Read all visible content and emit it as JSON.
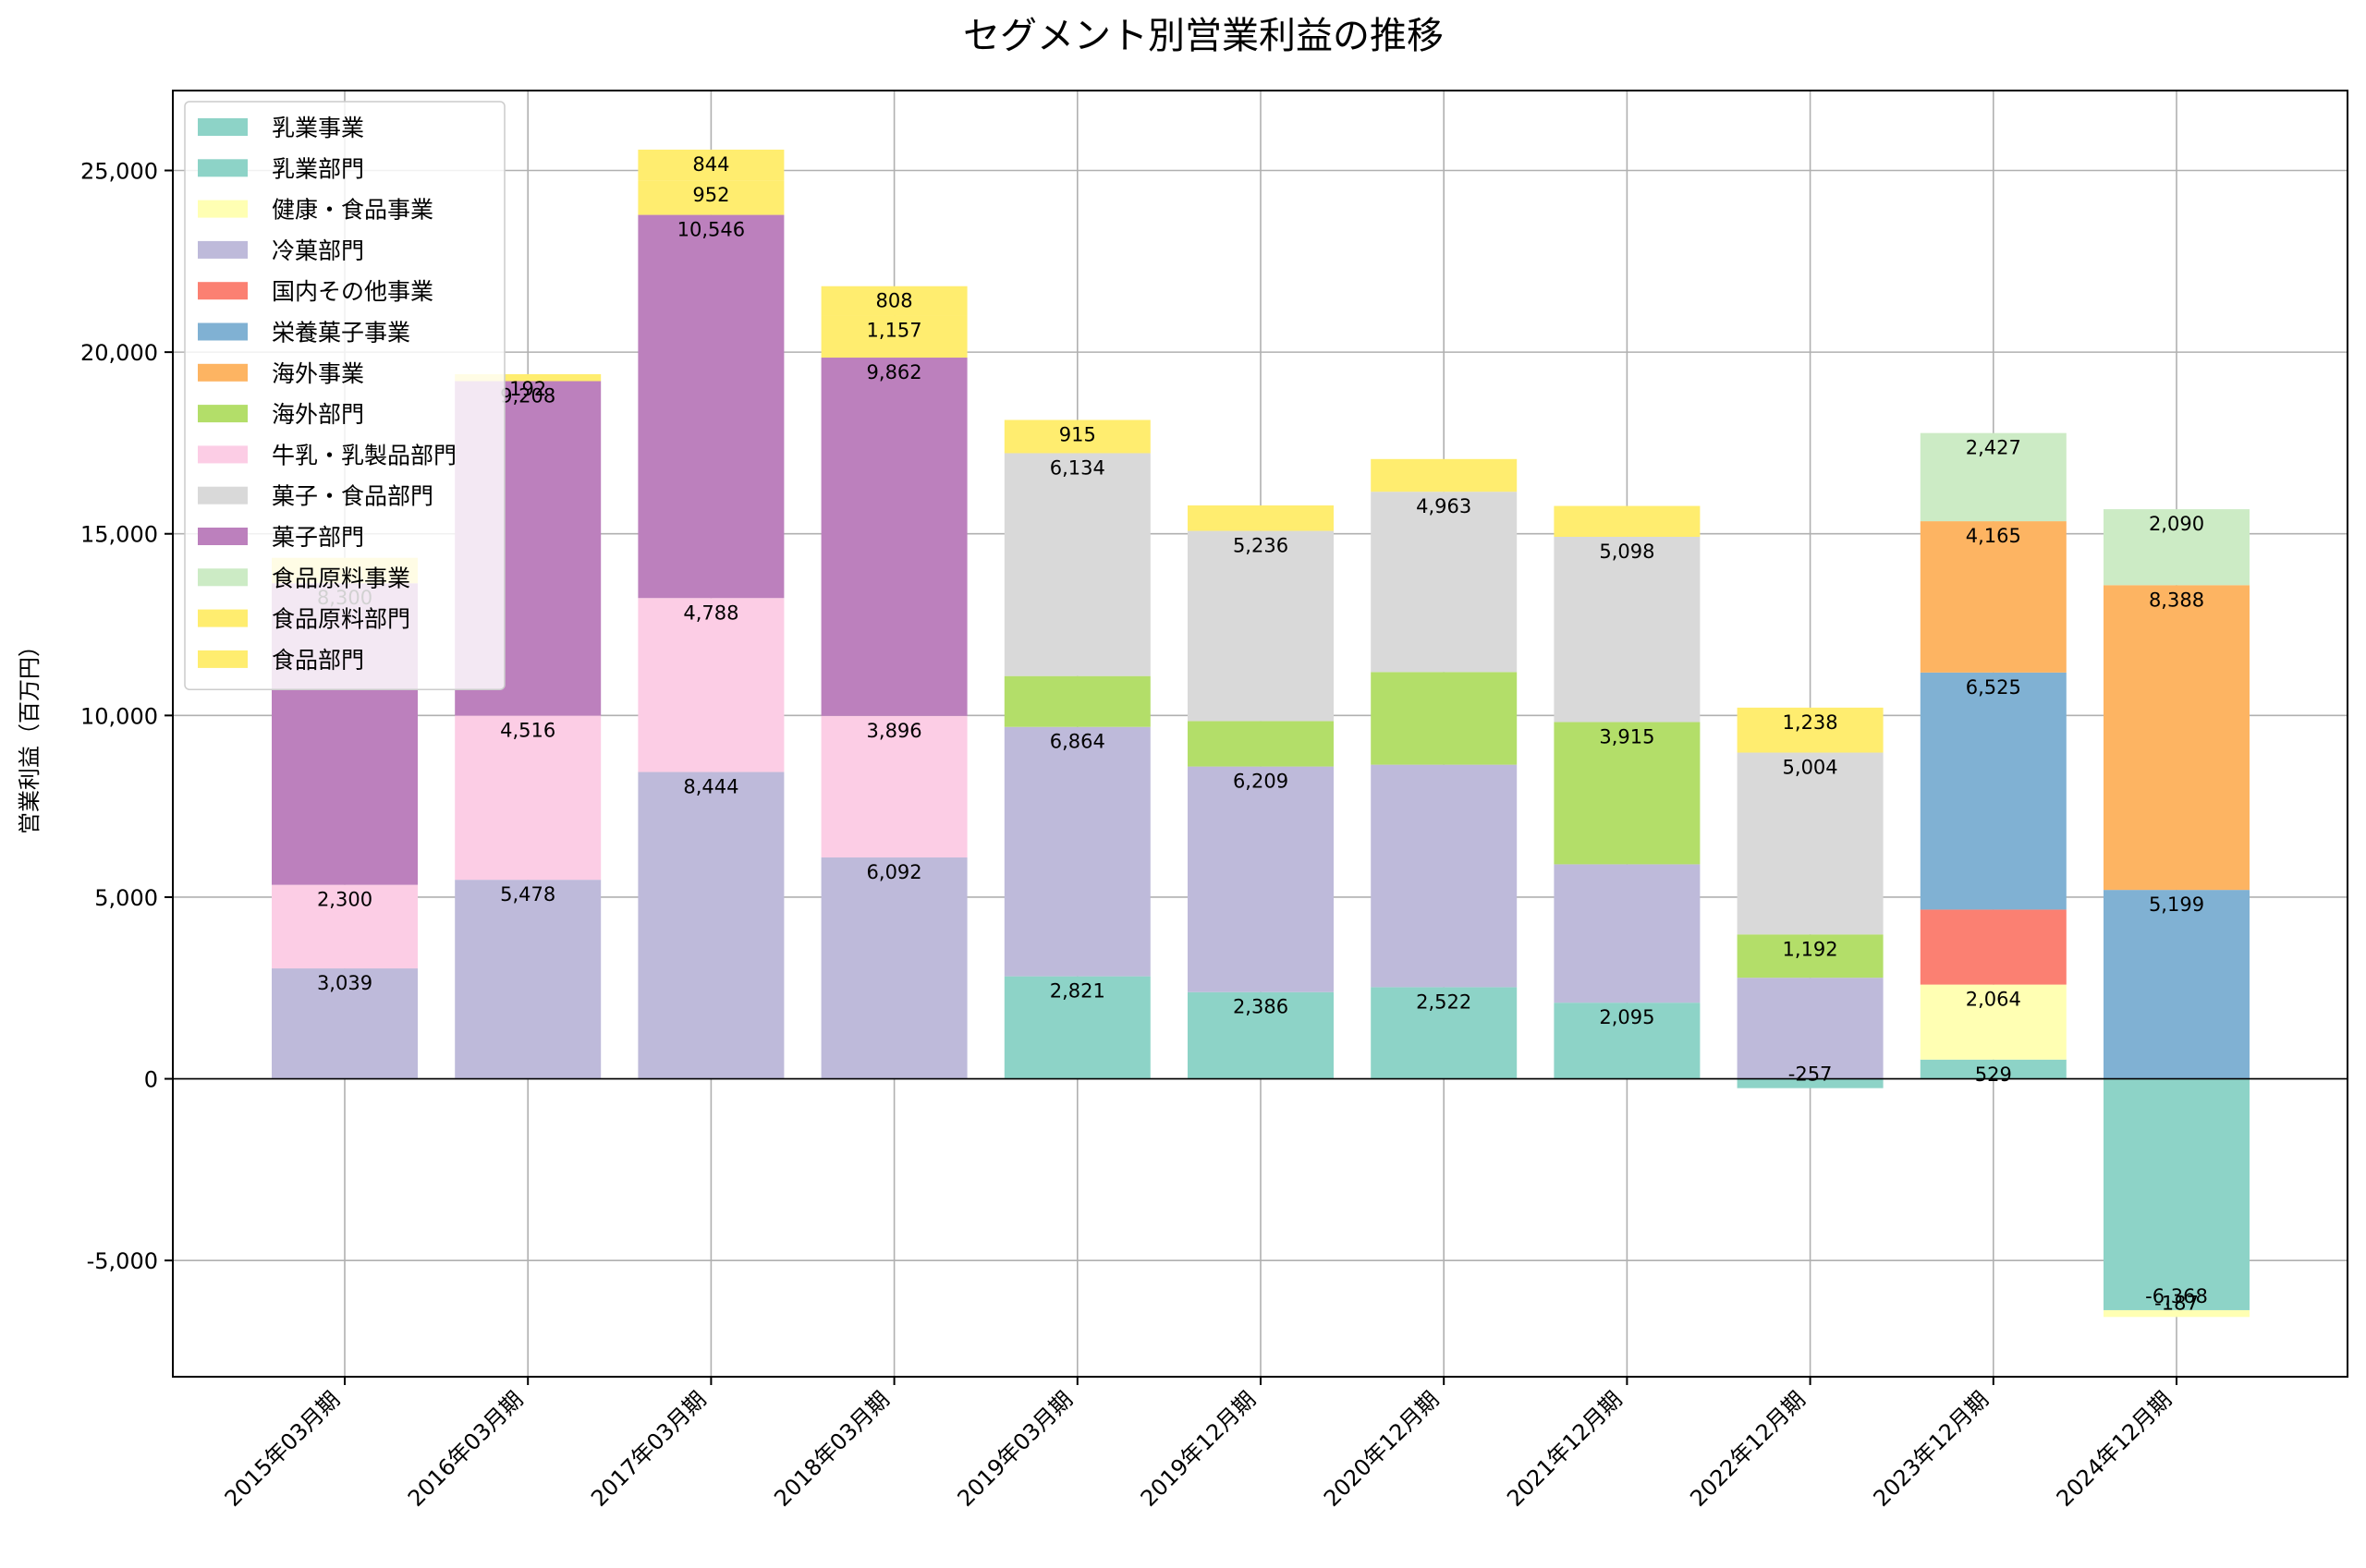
{
  "chart_data": {
    "type": "bar",
    "stacked": true,
    "title": "セグメント別営業利益の推移",
    "xlabel": "",
    "ylabel": "営業利益（百万円）",
    "ylim": [
      -8200,
      27200
    ],
    "yticks": [
      -5000,
      0,
      5000,
      10000,
      15000,
      20000,
      25000
    ],
    "ytick_labels": [
      "-5,000",
      "0",
      "5,000",
      "10,000",
      "15,000",
      "20,000",
      "25,000"
    ],
    "grid": true,
    "legend_position": "top-left",
    "categories": [
      "2015年03月期",
      "2016年03月期",
      "2017年03月期",
      "2018年03月期",
      "2019年03月期",
      "2019年12月期",
      "2020年12月期",
      "2021年12月期",
      "2022年12月期",
      "2023年12月期",
      "2024年12月期"
    ],
    "series": [
      {
        "name": "乳業事業",
        "color": "#8dd3c7",
        "values": [
          0,
          0,
          0,
          0,
          0,
          0,
          0,
          0,
          -257,
          529,
          -6368
        ]
      },
      {
        "name": "乳業部門",
        "color": "#8dd3c7",
        "values": [
          0,
          0,
          0,
          0,
          2821,
          2386,
          2522,
          2095,
          0,
          0,
          0
        ]
      },
      {
        "name": "健康・食品事業",
        "color": "#ffffb3",
        "values": [
          0,
          0,
          0,
          0,
          0,
          0,
          0,
          0,
          0,
          2064,
          -187
        ]
      },
      {
        "name": "冷菓部門",
        "color": "#bebada",
        "values": [
          3039,
          5478,
          8444,
          6092,
          6864,
          6209,
          6123,
          3809,
          2782,
          0,
          0
        ]
      },
      {
        "name": "国内その他事業",
        "color": "#fb8072",
        "values": [
          0,
          0,
          0,
          0,
          0,
          0,
          0,
          0,
          0,
          2064,
          0
        ]
      },
      {
        "name": "栄養菓子事業",
        "color": "#80b1d3",
        "values": [
          0,
          0,
          0,
          0,
          0,
          0,
          0,
          0,
          0,
          6525,
          5199
        ]
      },
      {
        "name": "海外事業",
        "color": "#fdb462",
        "values": [
          0,
          0,
          0,
          0,
          0,
          0,
          0,
          0,
          0,
          4165,
          8388
        ]
      },
      {
        "name": "海外部門",
        "color": "#b3de69",
        "values": [
          0,
          0,
          0,
          0,
          1400,
          1250,
          2550,
          3915,
          1192,
          0,
          0
        ]
      },
      {
        "name": "牛乳・乳製品部門",
        "color": "#fccde5",
        "values": [
          2300,
          4516,
          4788,
          3896,
          0,
          0,
          0,
          0,
          0,
          0,
          0
        ]
      },
      {
        "name": "菓子・食品部門",
        "color": "#d9d9d9",
        "values": [
          0,
          0,
          0,
          0,
          6134,
          5236,
          4963,
          5098,
          5004,
          0,
          0
        ]
      },
      {
        "name": "菓子部門",
        "color": "#bc80bd",
        "values": [
          8300,
          9208,
          10546,
          9862,
          0,
          0,
          0,
          0,
          0,
          0,
          0
        ]
      },
      {
        "name": "食品原料事業",
        "color": "#ccebc5",
        "values": [
          0,
          0,
          0,
          0,
          0,
          0,
          0,
          0,
          0,
          2427,
          2090
        ]
      },
      {
        "name": "食品原料部門",
        "color": "#ffed6f",
        "values": [
          0,
          0,
          952,
          1157,
          0,
          0,
          0,
          0,
          0,
          0,
          0
        ]
      },
      {
        "name": "食品部門",
        "color": "#ffed6f",
        "values": [
          700,
          192,
          844,
          808,
          915,
          700,
          900,
          850,
          1238,
          0,
          0
        ]
      }
    ],
    "data_labels": [
      {
        "category": 0,
        "series": "冷菓部門",
        "text": "3,039"
      },
      {
        "category": 0,
        "series": "牛乳・乳製品部門",
        "text": "2,300"
      },
      {
        "category": 0,
        "series": "菓子部門",
        "text": "8,300"
      },
      {
        "category": 1,
        "series": "冷菓部門",
        "text": "5,478"
      },
      {
        "category": 1,
        "series": "牛乳・乳製品部門",
        "text": "4,516"
      },
      {
        "category": 1,
        "series": "菓子部門",
        "text": "9,208"
      },
      {
        "category": 1,
        "series": "食品部門",
        "text": "192"
      },
      {
        "category": 2,
        "series": "冷菓部門",
        "text": "8,444"
      },
      {
        "category": 2,
        "series": "牛乳・乳製品部門",
        "text": "4,788"
      },
      {
        "category": 2,
        "series": "菓子部門",
        "text": "10,546"
      },
      {
        "category": 2,
        "series": "食品原料部門",
        "text": "952"
      },
      {
        "category": 2,
        "series": "食品部門",
        "text": "844"
      },
      {
        "category": 3,
        "series": "冷菓部門",
        "text": "6,092"
      },
      {
        "category": 3,
        "series": "牛乳・乳製品部門",
        "text": "3,896"
      },
      {
        "category": 3,
        "series": "菓子部門",
        "text": "9,862"
      },
      {
        "category": 3,
        "series": "食品原料部門",
        "text": "1,157"
      },
      {
        "category": 3,
        "series": "食品部門",
        "text": "808"
      },
      {
        "category": 4,
        "series": "乳業部門",
        "text": "2,821"
      },
      {
        "category": 4,
        "series": "冷菓部門",
        "text": "6,864"
      },
      {
        "category": 4,
        "series": "菓子・食品部門",
        "text": "6,134"
      },
      {
        "category": 4,
        "series": "食品部門",
        "text": "915"
      },
      {
        "category": 5,
        "series": "乳業部門",
        "text": "2,386"
      },
      {
        "category": 5,
        "series": "冷菓部門",
        "text": "6,209"
      },
      {
        "category": 5,
        "series": "菓子・食品部門",
        "text": "5,236"
      },
      {
        "category": 6,
        "series": "乳業部門",
        "text": "2,522"
      },
      {
        "category": 6,
        "series": "菓子・食品部門",
        "text": "4,963"
      },
      {
        "category": 7,
        "series": "乳業部門",
        "text": "2,095"
      },
      {
        "category": 7,
        "series": "海外部門",
        "text": "3,915"
      },
      {
        "category": 7,
        "series": "菓子・食品部門",
        "text": "5,098"
      },
      {
        "category": 8,
        "series": "乳業事業",
        "text": "-257"
      },
      {
        "category": 8,
        "series": "海外部門",
        "text": "1,192"
      },
      {
        "category": 8,
        "series": "菓子・食品部門",
        "text": "5,004"
      },
      {
        "category": 8,
        "series": "食品部門",
        "text": "1,238"
      },
      {
        "category": 9,
        "series": "乳業事業",
        "text": "529"
      },
      {
        "category": 9,
        "series": "健康・食品事業",
        "text": "2,064"
      },
      {
        "category": 9,
        "series": "栄養菓子事業",
        "text": "6,525"
      },
      {
        "category": 9,
        "series": "海外事業",
        "text": "4,165"
      },
      {
        "category": 9,
        "series": "食品原料事業",
        "text": "2,427"
      },
      {
        "category": 10,
        "series": "乳業事業",
        "text": "-6,368"
      },
      {
        "category": 10,
        "series": "健康・食品事業",
        "text": "-187"
      },
      {
        "category": 10,
        "series": "栄養菓子事業",
        "text": "5,199"
      },
      {
        "category": 10,
        "series": "海外事業",
        "text": "8,388"
      },
      {
        "category": 10,
        "series": "食品原料事業",
        "text": "2,090"
      }
    ]
  }
}
